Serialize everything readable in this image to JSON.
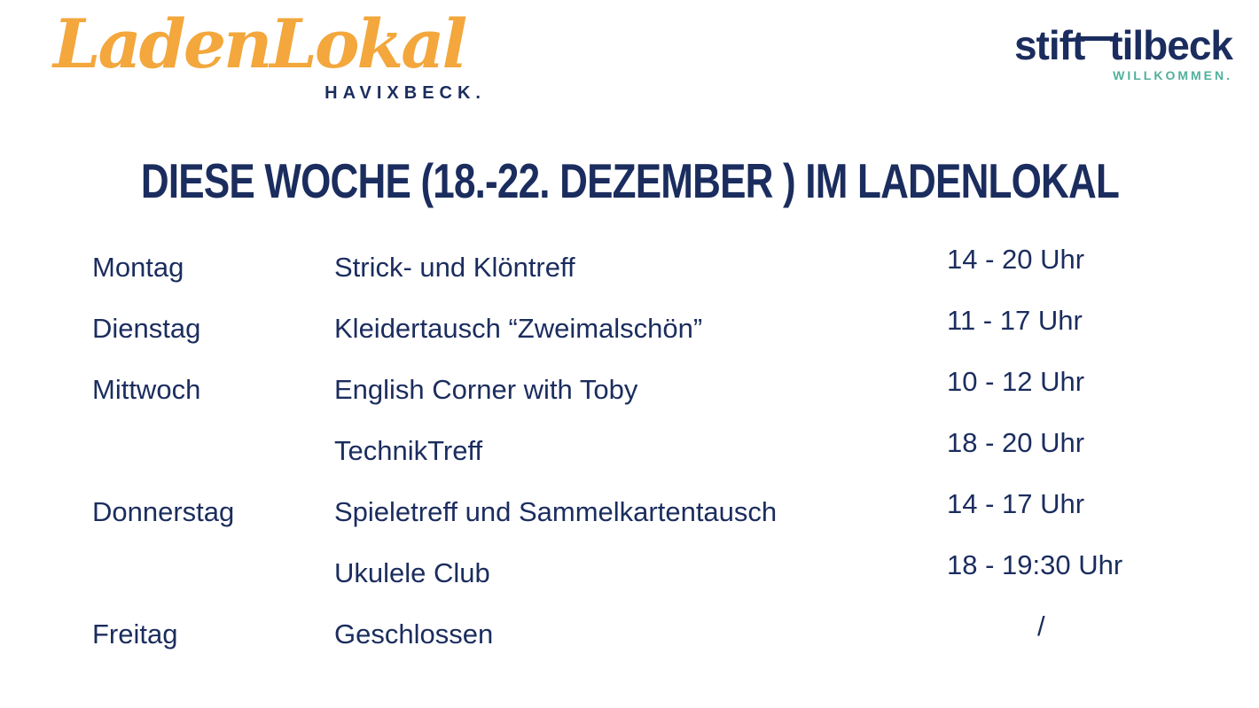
{
  "brand": {
    "logo_text": "LadenLokal",
    "logo_sub": "HAVIXBECK.",
    "partner_word1": "stift",
    "partner_word2": "tilbeck",
    "partner_sub": "WILLKOMMEN."
  },
  "title": "DIESE WOCHE (18.-22. DEZEMBER ) IM LADENLOKAL",
  "schedule": {
    "rows": [
      {
        "day": "Montag",
        "event": "Strick- und Klöntreff",
        "time": "14 - 20 Uhr"
      },
      {
        "day": "Dienstag",
        "event": "Kleidertausch “Zweimalschön”",
        "time": "11 - 17 Uhr"
      },
      {
        "day": "Mittwoch",
        "event": "English Corner with Toby",
        "time": "10 - 12 Uhr"
      },
      {
        "day": "",
        "event": "TechnikTreff",
        "time": "18 - 20 Uhr"
      },
      {
        "day": "Donnerstag",
        "event": "Spieletreff und Sammelkartentausch",
        "time": "14 - 17 Uhr"
      },
      {
        "day": "",
        "event": "Ukulele Club",
        "time": "18 - 19:30 Uhr"
      },
      {
        "day": "Freitag",
        "event": "Geschlossen",
        "time": "/"
      }
    ]
  },
  "colors": {
    "navy": "#1b2d5e",
    "orange": "#f3a73c",
    "teal": "#4fb09c",
    "background": "#ffffff"
  }
}
